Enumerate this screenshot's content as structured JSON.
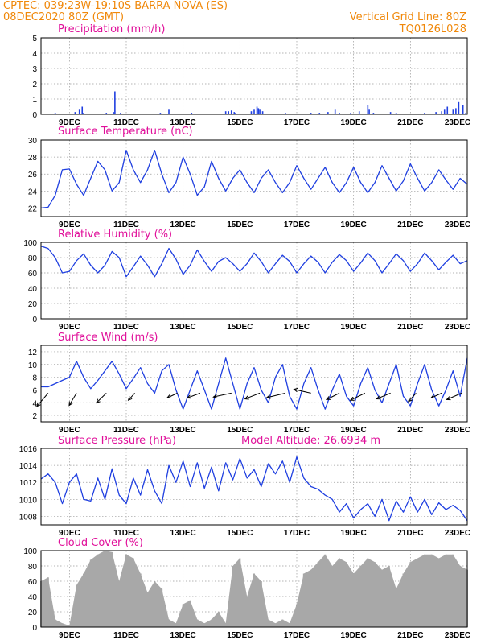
{
  "header": {
    "line1_left": "CPTEC:   039:23W-19:10S   BARRA NOVA (ES)",
    "line2_left": "08DEC2020 80Z (GMT)",
    "line1_right": "Vertical Grid Line: 80Z",
    "line2_right": "TQ0126L028"
  },
  "x_axis": {
    "ticks": [
      "9DEC",
      "11DEC",
      "13DEC",
      "15DEC",
      "17DEC",
      "19DEC",
      "21DEC",
      "23DEC"
    ],
    "tick_days": [
      1,
      3,
      5,
      7,
      9,
      11,
      13,
      15
    ],
    "range_days": [
      0,
      15
    ]
  },
  "colors": {
    "line": "#1f3fe0",
    "cloud": "#a8a8a8",
    "header": "#f0880a",
    "title": "#e0109a"
  },
  "chart_data": [
    {
      "type": "bar",
      "title": "Precipitation (mm/h)",
      "ylim": [
        0,
        5
      ],
      "yticks": [
        0,
        1,
        2,
        3,
        4,
        5
      ],
      "grid": true,
      "x_days": [
        0.2,
        0.5,
        0.9,
        1.2,
        1.35,
        1.45,
        1.5,
        1.9,
        2.3,
        2.55,
        2.6,
        2.8,
        3.3,
        3.6,
        4.2,
        4.5,
        4.65,
        4.8,
        5.3,
        5.5,
        5.8,
        6.2,
        6.5,
        6.6,
        6.7,
        6.8,
        6.85,
        7.4,
        7.5,
        7.6,
        7.65,
        7.7,
        7.8,
        8.4,
        8.6,
        8.8,
        9.5,
        9.8,
        10.1,
        10.35,
        10.5,
        10.6,
        10.9,
        11.2,
        11.5,
        11.55,
        11.7,
        12.0,
        12.3,
        12.5,
        13.2,
        13.5,
        13.9,
        14.1,
        14.2,
        14.3,
        14.5,
        14.6,
        14.7,
        14.85,
        14.95
      ],
      "values": [
        0.05,
        0.1,
        0.05,
        0.15,
        0.3,
        0.5,
        0.1,
        0.05,
        0.1,
        0.15,
        1.5,
        0.1,
        0.05,
        0.05,
        0.1,
        0.3,
        0.05,
        0.05,
        0.1,
        0.05,
        0.05,
        0.05,
        0.2,
        0.2,
        0.25,
        0.15,
        0.1,
        0.2,
        0.3,
        0.5,
        0.4,
        0.3,
        0.2,
        0.05,
        0.1,
        0.05,
        0.1,
        0.1,
        0.15,
        0.3,
        0.1,
        0.05,
        0.1,
        0.2,
        0.6,
        0.3,
        0.1,
        0.05,
        0.15,
        0.1,
        0.05,
        0.1,
        0.15,
        0.2,
        0.3,
        0.5,
        0.3,
        0.4,
        0.8,
        0.6,
        0.1
      ]
    },
    {
      "type": "line",
      "title": "Surface Temperature (nC)",
      "ylim": [
        21,
        30
      ],
      "yticks": [
        22,
        24,
        26,
        28,
        30
      ],
      "grid": true,
      "x_days": [
        0,
        0.25,
        0.5,
        0.75,
        1,
        1.25,
        1.5,
        1.75,
        2,
        2.25,
        2.5,
        2.75,
        3,
        3.25,
        3.5,
        3.75,
        4,
        4.25,
        4.5,
        4.75,
        5,
        5.25,
        5.5,
        5.75,
        6,
        6.25,
        6.5,
        6.75,
        7,
        7.25,
        7.5,
        7.75,
        8,
        8.25,
        8.5,
        8.75,
        9,
        9.25,
        9.5,
        9.75,
        10,
        10.25,
        10.5,
        10.75,
        11,
        11.25,
        11.5,
        11.75,
        12,
        12.25,
        12.5,
        12.75,
        13,
        13.25,
        13.5,
        13.75,
        14,
        14.25,
        14.5,
        14.75,
        15
      ],
      "values": [
        22,
        22.1,
        23.5,
        26.5,
        26.6,
        24.8,
        23.5,
        25.5,
        27.5,
        26.5,
        24,
        25,
        28.8,
        26.5,
        25,
        26.5,
        28.8,
        26,
        23.8,
        25,
        28,
        26,
        23.5,
        24.5,
        27.5,
        25.5,
        24,
        25.5,
        26.5,
        25,
        23.8,
        25.5,
        26.5,
        25,
        23.8,
        25,
        27,
        25.5,
        24.2,
        25.5,
        26.8,
        25,
        23.8,
        25,
        26.8,
        25,
        23.8,
        25,
        27,
        25.5,
        24,
        25.2,
        27.2,
        25.5,
        24,
        25,
        26.5,
        25.3,
        24.2,
        25.5,
        24.8
      ]
    },
    {
      "type": "line",
      "title": "Relative Humidity (%)",
      "ylim": [
        0,
        100
      ],
      "yticks": [
        0,
        20,
        40,
        60,
        80,
        100
      ],
      "grid": true,
      "x_days": [
        0,
        0.25,
        0.5,
        0.75,
        1,
        1.25,
        1.5,
        1.75,
        2,
        2.25,
        2.5,
        2.75,
        3,
        3.25,
        3.5,
        3.75,
        4,
        4.25,
        4.5,
        4.75,
        5,
        5.25,
        5.5,
        5.75,
        6,
        6.25,
        6.5,
        6.75,
        7,
        7.25,
        7.5,
        7.75,
        8,
        8.25,
        8.5,
        8.75,
        9,
        9.25,
        9.5,
        9.75,
        10,
        10.25,
        10.5,
        10.75,
        11,
        11.25,
        11.5,
        11.75,
        12,
        12.25,
        12.5,
        12.75,
        13,
        13.25,
        13.5,
        13.75,
        14,
        14.25,
        14.5,
        14.75,
        15
      ],
      "values": [
        95,
        92,
        80,
        60,
        62,
        76,
        85,
        70,
        60,
        70,
        88,
        80,
        55,
        68,
        82,
        70,
        55,
        72,
        92,
        78,
        58,
        70,
        90,
        75,
        62,
        75,
        80,
        72,
        62,
        72,
        86,
        75,
        60,
        72,
        83,
        75,
        60,
        72,
        82,
        74,
        60,
        74,
        84,
        76,
        62,
        73,
        86,
        76,
        60,
        72,
        85,
        76,
        62,
        72,
        86,
        76,
        64,
        74,
        83,
        72,
        76
      ]
    },
    {
      "type": "line",
      "title": "Surface Wind (m/s)",
      "ylim": [
        1,
        13
      ],
      "yticks": [
        2,
        4,
        6,
        8,
        10,
        12
      ],
      "grid": true,
      "x_days": [
        0,
        0.25,
        0.5,
        0.75,
        1,
        1.25,
        1.5,
        1.75,
        2,
        2.25,
        2.5,
        2.75,
        3,
        3.25,
        3.5,
        3.75,
        4,
        4.25,
        4.5,
        4.75,
        5,
        5.25,
        5.5,
        5.75,
        6,
        6.25,
        6.5,
        6.75,
        7,
        7.25,
        7.5,
        7.75,
        8,
        8.25,
        8.5,
        8.75,
        9,
        9.25,
        9.5,
        9.75,
        10,
        10.25,
        10.5,
        10.75,
        11,
        11.25,
        11.5,
        11.75,
        12,
        12.25,
        12.5,
        12.75,
        13,
        13.25,
        13.5,
        13.75,
        14,
        14.25,
        14.5,
        14.75,
        15
      ],
      "values": [
        6.5,
        6.5,
        7,
        7.5,
        8,
        10.5,
        8,
        6.2,
        7.5,
        9,
        10.5,
        8.5,
        6.2,
        7.8,
        9.5,
        7,
        5.5,
        9,
        10,
        6,
        3,
        6,
        9,
        6,
        3,
        7,
        11,
        7,
        3,
        7,
        9.5,
        6,
        4,
        8,
        10,
        5,
        3,
        7,
        9.5,
        6,
        3,
        6,
        8.5,
        5,
        3.5,
        7,
        9.5,
        6,
        4,
        7,
        10,
        5,
        3.5,
        7,
        10,
        6,
        3.5,
        6,
        9,
        5,
        11
      ],
      "vectors": {
        "x_days": [
          0.25,
          1.25,
          2.3,
          3.3,
          4.8,
          5.6,
          6.7,
          7.7,
          8.6,
          9.5,
          10.5,
          11.4,
          12.3,
          13.2,
          14.1,
          14.8
        ],
        "u": [
          -3.5,
          -2.3,
          -3.1,
          -2,
          -3.2,
          -4,
          -5.6,
          -4.6,
          -5.8,
          -5.3,
          -4,
          -4.5,
          -4.3,
          -2.4,
          -3.3,
          -4.6
        ],
        "v": [
          -4.1,
          -3.8,
          -3,
          -2.2,
          -1.5,
          -1.5,
          -1.2,
          -1.8,
          -1.4,
          1.2,
          -2,
          -2.2,
          -1.8,
          -2.6,
          -1.5,
          -2
        ]
      }
    },
    {
      "type": "line",
      "title": "Surface Pressure (hPa)",
      "annotation": "Model Altitude: 26.6934 m",
      "ylim": [
        1007,
        1016
      ],
      "yticks": [
        1008,
        1010,
        1012,
        1014,
        1016
      ],
      "grid": true,
      "x_days": [
        0,
        0.25,
        0.5,
        0.75,
        1,
        1.25,
        1.5,
        1.75,
        2,
        2.25,
        2.5,
        2.75,
        3,
        3.25,
        3.5,
        3.75,
        4,
        4.25,
        4.5,
        4.75,
        5,
        5.25,
        5.5,
        5.75,
        6,
        6.25,
        6.5,
        6.75,
        7,
        7.25,
        7.5,
        7.75,
        8,
        8.25,
        8.5,
        8.75,
        9,
        9.25,
        9.5,
        9.75,
        10,
        10.25,
        10.5,
        10.75,
        11,
        11.25,
        11.5,
        11.75,
        12,
        12.25,
        12.5,
        12.75,
        13,
        13.25,
        13.5,
        13.75,
        14,
        14.25,
        14.5,
        14.75,
        15
      ],
      "values": [
        1012.4,
        1013,
        1012,
        1009.5,
        1012,
        1013,
        1010,
        1009.8,
        1012.5,
        1010,
        1013.6,
        1010.5,
        1009.5,
        1012.5,
        1010.5,
        1013.5,
        1011,
        1009.5,
        1014,
        1012,
        1014.5,
        1011.5,
        1014.3,
        1011.3,
        1013.8,
        1011,
        1014.3,
        1012.3,
        1014.8,
        1012.5,
        1013.5,
        1011.5,
        1014.2,
        1013,
        1014.5,
        1012,
        1015,
        1012.5,
        1011.5,
        1011.2,
        1010.5,
        1010,
        1008.5,
        1009.5,
        1007.8,
        1008.8,
        1009.5,
        1008,
        1010,
        1007.5,
        1009.8,
        1008.5,
        1010.3,
        1008.5,
        1010,
        1008.2,
        1009.6,
        1008.8,
        1009.3,
        1008.7,
        1007.5
      ]
    },
    {
      "type": "bar",
      "title": "Cloud Cover (%)",
      "ylim": [
        0,
        100
      ],
      "yticks": [
        0,
        20,
        40,
        60,
        80,
        100
      ],
      "grid": true,
      "x_days": [
        0,
        0.25,
        0.5,
        0.75,
        1,
        1.25,
        1.5,
        1.75,
        2,
        2.25,
        2.5,
        2.75,
        3,
        3.25,
        3.5,
        3.75,
        4,
        4.25,
        4.5,
        4.75,
        5,
        5.25,
        5.5,
        5.75,
        6,
        6.25,
        6.5,
        6.75,
        7,
        7.25,
        7.5,
        7.75,
        8,
        8.25,
        8.5,
        8.75,
        9,
        9.25,
        9.5,
        9.75,
        10,
        10.25,
        10.5,
        10.75,
        11,
        11.25,
        11.5,
        11.75,
        12,
        12.25,
        12.5,
        12.75,
        13,
        13.25,
        13.5,
        13.75,
        14,
        14.25,
        14.5,
        14.75,
        15
      ],
      "values": [
        60,
        65,
        10,
        5,
        2,
        55,
        70,
        88,
        95,
        100,
        98,
        60,
        95,
        90,
        70,
        45,
        60,
        50,
        10,
        5,
        30,
        35,
        10,
        5,
        10,
        20,
        5,
        80,
        90,
        40,
        70,
        60,
        10,
        5,
        10,
        5,
        30,
        70,
        75,
        85,
        95,
        80,
        90,
        85,
        70,
        80,
        90,
        85,
        75,
        80,
        50,
        70,
        85,
        90,
        95,
        95,
        90,
        95,
        95,
        80,
        75
      ]
    }
  ]
}
